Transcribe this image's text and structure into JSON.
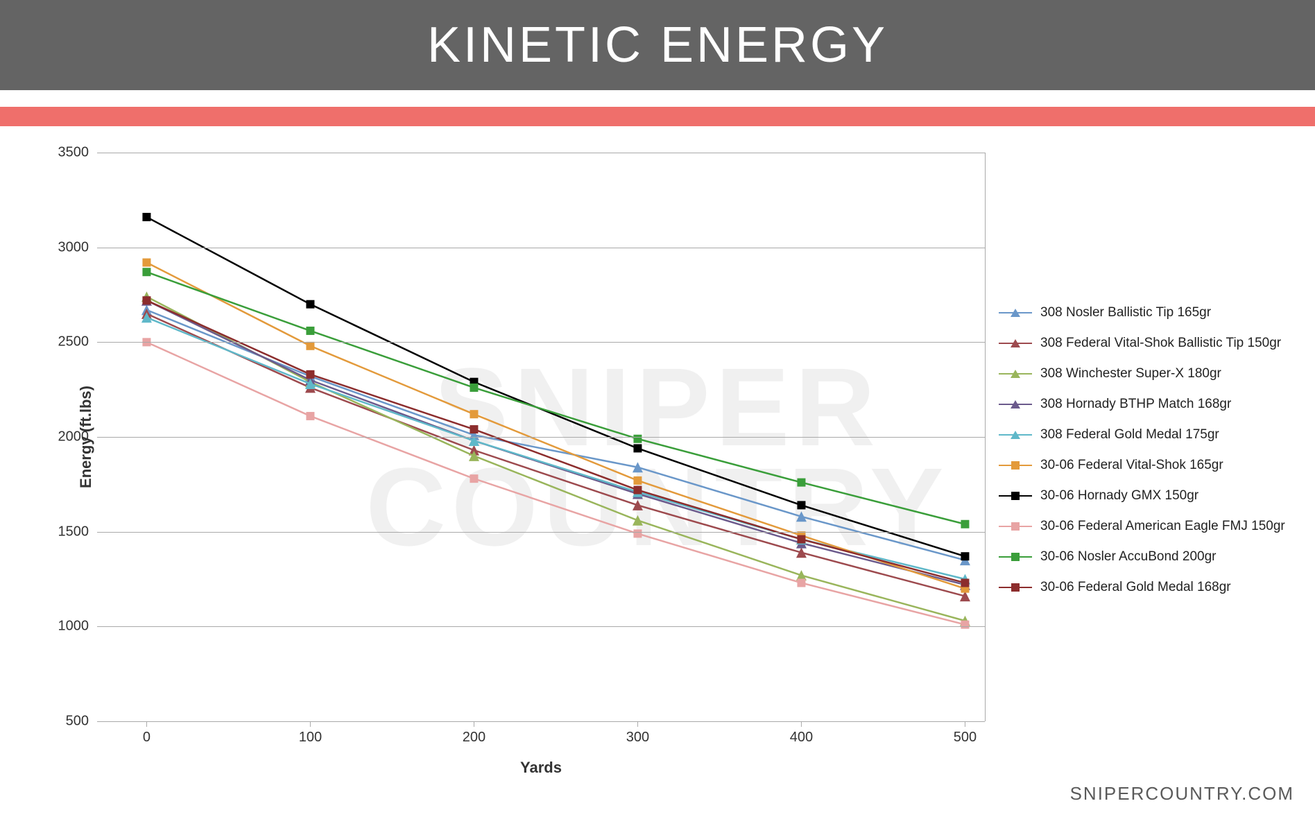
{
  "header": {
    "title": "KINETIC ENERGY",
    "bg_color": "#646464",
    "text_color": "#ffffff",
    "stripe_color": "#ef6f6b"
  },
  "footer": {
    "text": "SNIPERCOUNTRY.COM"
  },
  "watermark": {
    "line1": "SNIPER",
    "line2": "COUNTRY"
  },
  "chart": {
    "type": "line",
    "x_label": "Yards",
    "y_label": "Energy (ft.lbs)",
    "x_categories": [
      "0",
      "100",
      "200",
      "300",
      "400",
      "500"
    ],
    "x_values": [
      0,
      100,
      200,
      300,
      400,
      500
    ],
    "y_min": 500,
    "y_max": 3500,
    "y_tick_step": 500,
    "y_ticks": [
      500,
      1000,
      1500,
      2000,
      2500,
      3000,
      3500
    ],
    "grid_color": "#a9a9a9",
    "background_color": "#ffffff",
    "tick_fontsize": 20,
    "axis_title_fontsize": 22,
    "legend_fontsize": 19,
    "line_width": 2.5,
    "marker_size": 12,
    "series": [
      {
        "name": "308 Nosler Ballistic Tip 165gr",
        "marker": "triangle",
        "color": "#6a97c9",
        "values": [
          2670,
          2320,
          2010,
          1840,
          1580,
          1350
        ]
      },
      {
        "name": "308 Federal Vital-Shok Ballistic Tip 150gr",
        "marker": "triangle",
        "color": "#9d4a4e",
        "values": [
          2650,
          2260,
          1930,
          1640,
          1390,
          1160
        ]
      },
      {
        "name": "308 Winchester Super-X 180gr",
        "marker": "triangle",
        "color": "#99b55b",
        "values": [
          2740,
          2290,
          1900,
          1560,
          1270,
          1030
        ]
      },
      {
        "name": "308 Hornady BTHP Match 168gr",
        "marker": "triangle",
        "color": "#6b5a8c",
        "values": [
          2720,
          2300,
          1980,
          1700,
          1440,
          1220
        ]
      },
      {
        "name": "308 Federal Gold Medal 175gr",
        "marker": "triangle",
        "color": "#5fb8c9",
        "values": [
          2630,
          2280,
          1980,
          1710,
          1460,
          1250
        ]
      },
      {
        "name": "30-06 Federal Vital-Shok 165gr",
        "marker": "square",
        "color": "#e39a3b",
        "values": [
          2920,
          2480,
          2120,
          1770,
          1480,
          1200
        ]
      },
      {
        "name": "30-06 Hornady GMX 150gr",
        "marker": "square",
        "color": "#000000",
        "values": [
          3160,
          2700,
          2290,
          1940,
          1640,
          1370
        ]
      },
      {
        "name": "30-06 Federal American Eagle FMJ 150gr",
        "marker": "square",
        "color": "#e8a4a4",
        "values": [
          2500,
          2110,
          1780,
          1490,
          1230,
          1010
        ]
      },
      {
        "name": "30-06 Nosler AccuBond 200gr",
        "marker": "square",
        "color": "#3a9e3a",
        "values": [
          2870,
          2560,
          2260,
          1990,
          1760,
          1540
        ]
      },
      {
        "name": "30-06 Federal Gold Medal 168gr",
        "marker": "square",
        "color": "#8c2d2d",
        "values": [
          2720,
          2330,
          2040,
          1720,
          1460,
          1230
        ]
      }
    ]
  }
}
